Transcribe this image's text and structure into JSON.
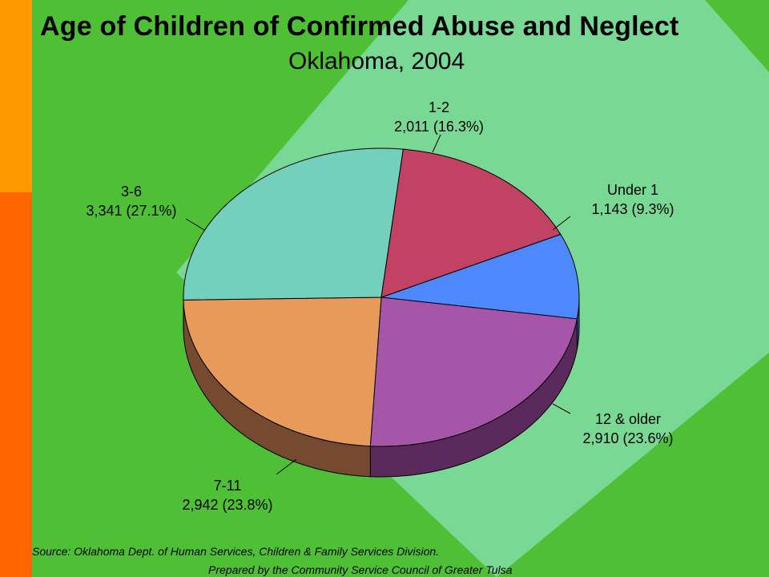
{
  "slide": {
    "title": "Age of Children of Confirmed Abuse and Neglect",
    "subtitle": "Oklahoma, 2004",
    "source": "Source:  Oklahoma Dept. of Human Services, Children & Family Services Division.",
    "prepared": "Prepared by the Community Service Council of Greater Tulsa"
  },
  "colors": {
    "background": "#4fbf35",
    "diamond": "#7ad99a",
    "bar_top": "#ff9900",
    "bar_bottom": "#ff6600"
  },
  "chart_data": {
    "type": "pie",
    "title": "Age of Children of Confirmed Abuse and Neglect",
    "subtitle": "Oklahoma, 2004",
    "slices": [
      {
        "label": "Under 1",
        "value": 1143,
        "percent": 9.3,
        "value_text": "1,143  (9.3%)",
        "color": "#4d88ff",
        "side": "#2e529a"
      },
      {
        "label": "12 & older",
        "value": 2910,
        "percent": 23.6,
        "value_text": "2,910  (23.6%)",
        "color": "#a656a8",
        "side": "#5a2a5c"
      },
      {
        "label": "7-11",
        "value": 2942,
        "percent": 23.8,
        "value_text": "2,942  (23.8%)",
        "color": "#e89a5a",
        "side": "#754a2e"
      },
      {
        "label": "3-6",
        "value": 3341,
        "percent": 27.1,
        "value_text": "3,341  (27.1%)",
        "color": "#72d0bc",
        "side": "#3c6e62"
      },
      {
        "label": "1-2",
        "value": 2011,
        "percent": 16.3,
        "value_text": "2,011  (16.3%)",
        "color": "#c14262",
        "side": "#6e2236"
      }
    ]
  }
}
